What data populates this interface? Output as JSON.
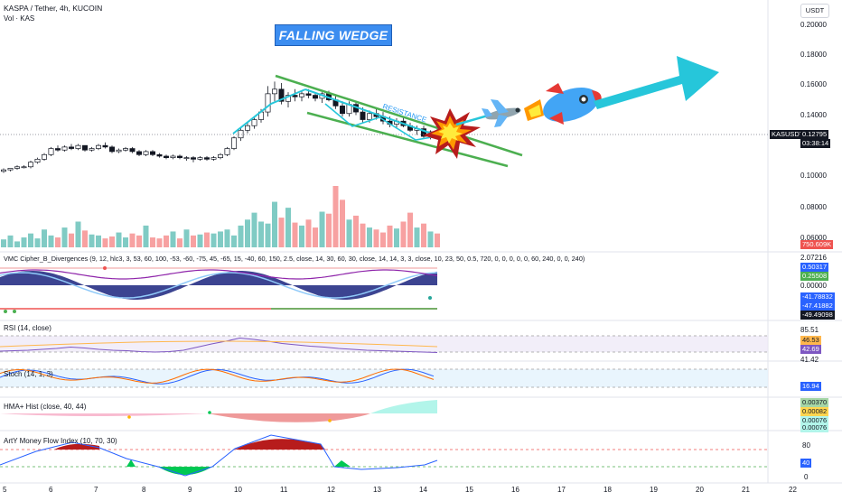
{
  "header": {
    "title": "KASPA / Tether, 4h, KUCOIN",
    "subtitle": "Vol · KAS",
    "currency_button": "USDT"
  },
  "annotations": {
    "pattern_label": "FALLING WEDGE",
    "resistance_label": "RESISTANCE"
  },
  "price_axis": {
    "ticks": [
      "0.20000",
      "0.18000",
      "0.16000",
      "0.14000",
      "0.10000",
      "0.08000",
      "0.06000"
    ],
    "symbol_tag": "KASUSDT",
    "last_price": "0.12795",
    "countdown": "03:38:14",
    "volume_tag": "750.609K"
  },
  "time_axis": {
    "ticks": [
      "5",
      "6",
      "7",
      "8",
      "9",
      "10",
      "11",
      "12",
      "13",
      "14",
      "15",
      "16",
      "17",
      "18",
      "19",
      "20",
      "21",
      "22"
    ]
  },
  "indicators": {
    "vmc": {
      "title": "VMC Cipher_B_Divergences (9, 12, hlc3, 3, 53, 60, 100, -53, -60, -75, 45, -65, 15, -40, 60, 150, 2.5, close, 14, 30, 60, 30, close, 14, 14, 3, 3, close, 10, 23, 50, 0.5, 720, 0, 0, 0, 0, 0, 60, 240, 0, 0, 240)",
      "axis": [
        "2.07216",
        "0.50317",
        "0.25508",
        "0.00000",
        "-41.78832",
        "-47.41882",
        "-49.49098"
      ]
    },
    "rsi": {
      "title": "RSI (14, close)",
      "axis": [
        "85.51",
        "46.53",
        "42.69",
        "41.42"
      ]
    },
    "stoch": {
      "title": "Stoch (14, 1, 3)",
      "axis": [
        "16.94"
      ]
    },
    "hma": {
      "title": "HMA+ Hist (close, 40, 44)",
      "axis": [
        "0.00370",
        "0.00082",
        "0.00076",
        "0.00076"
      ]
    },
    "mfi": {
      "title": "ArtY Money Flow Index (10, 70, 30)",
      "axis": [
        "80",
        "40",
        "0"
      ]
    }
  },
  "colors": {
    "up": "#26a69a",
    "down": "#ef5350",
    "wedge_lines": "#4caf50",
    "trend_cyan": "#26c6da",
    "axis_text": "#131722"
  },
  "chart_data": {
    "type": "candlestick",
    "title": "KASPA / Tether, 4h, KUCOIN",
    "x_ticks": [
      "5",
      "6",
      "7",
      "8",
      "9",
      "10",
      "11",
      "12",
      "13",
      "14",
      "15",
      "16",
      "17",
      "18",
      "19",
      "20",
      "21",
      "22"
    ],
    "y_ticks": [
      0.06,
      0.08,
      0.1,
      0.14,
      0.16,
      0.18,
      0.2
    ],
    "ylim": [
      0.056,
      0.208
    ],
    "last_price": 0.12795,
    "candles": [
      [
        0.104,
        0.106,
        0.103,
        0.105
      ],
      [
        0.105,
        0.106,
        0.104,
        0.106
      ],
      [
        0.106,
        0.108,
        0.105,
        0.107
      ],
      [
        0.107,
        0.108,
        0.106,
        0.107
      ],
      [
        0.107,
        0.111,
        0.106,
        0.11
      ],
      [
        0.11,
        0.113,
        0.109,
        0.112
      ],
      [
        0.112,
        0.116,
        0.111,
        0.115
      ],
      [
        0.115,
        0.12,
        0.114,
        0.119
      ],
      [
        0.119,
        0.121,
        0.117,
        0.118
      ],
      [
        0.118,
        0.121,
        0.117,
        0.12
      ],
      [
        0.12,
        0.122,
        0.118,
        0.119
      ],
      [
        0.119,
        0.122,
        0.118,
        0.121
      ],
      [
        0.121,
        0.121,
        0.117,
        0.118
      ],
      [
        0.118,
        0.12,
        0.117,
        0.119
      ],
      [
        0.119,
        0.122,
        0.118,
        0.121
      ],
      [
        0.121,
        0.123,
        0.119,
        0.12
      ],
      [
        0.12,
        0.121,
        0.116,
        0.117
      ],
      [
        0.117,
        0.119,
        0.116,
        0.118
      ],
      [
        0.118,
        0.12,
        0.117,
        0.119
      ],
      [
        0.119,
        0.12,
        0.116,
        0.117
      ],
      [
        0.117,
        0.118,
        0.114,
        0.115
      ],
      [
        0.115,
        0.118,
        0.114,
        0.117
      ],
      [
        0.117,
        0.118,
        0.114,
        0.115
      ],
      [
        0.115,
        0.116,
        0.113,
        0.114
      ],
      [
        0.114,
        0.115,
        0.112,
        0.113
      ],
      [
        0.113,
        0.115,
        0.112,
        0.114
      ],
      [
        0.114,
        0.115,
        0.112,
        0.113
      ],
      [
        0.113,
        0.114,
        0.111,
        0.113
      ],
      [
        0.113,
        0.114,
        0.11,
        0.112
      ],
      [
        0.112,
        0.114,
        0.111,
        0.113
      ],
      [
        0.113,
        0.114,
        0.111,
        0.112
      ],
      [
        0.112,
        0.114,
        0.111,
        0.113
      ],
      [
        0.113,
        0.116,
        0.112,
        0.115
      ],
      [
        0.115,
        0.12,
        0.114,
        0.119
      ],
      [
        0.119,
        0.127,
        0.118,
        0.126
      ],
      [
        0.126,
        0.133,
        0.124,
        0.131
      ],
      [
        0.131,
        0.136,
        0.129,
        0.134
      ],
      [
        0.134,
        0.14,
        0.132,
        0.138
      ],
      [
        0.138,
        0.145,
        0.136,
        0.143
      ],
      [
        0.143,
        0.16,
        0.14,
        0.155
      ],
      [
        0.155,
        0.163,
        0.15,
        0.158
      ],
      [
        0.158,
        0.162,
        0.148,
        0.15
      ],
      [
        0.15,
        0.156,
        0.146,
        0.154
      ],
      [
        0.154,
        0.158,
        0.15,
        0.153
      ],
      [
        0.153,
        0.157,
        0.15,
        0.155
      ],
      [
        0.155,
        0.158,
        0.152,
        0.154
      ],
      [
        0.154,
        0.156,
        0.15,
        0.152
      ],
      [
        0.152,
        0.156,
        0.149,
        0.155
      ],
      [
        0.155,
        0.157,
        0.15,
        0.151
      ],
      [
        0.151,
        0.154,
        0.145,
        0.147
      ],
      [
        0.147,
        0.15,
        0.14,
        0.142
      ],
      [
        0.142,
        0.15,
        0.14,
        0.148
      ],
      [
        0.148,
        0.15,
        0.141,
        0.143
      ],
      [
        0.143,
        0.146,
        0.136,
        0.138
      ],
      [
        0.138,
        0.144,
        0.136,
        0.142
      ],
      [
        0.142,
        0.145,
        0.138,
        0.14
      ],
      [
        0.14,
        0.143,
        0.135,
        0.137
      ],
      [
        0.137,
        0.14,
        0.133,
        0.135
      ],
      [
        0.135,
        0.139,
        0.132,
        0.137
      ],
      [
        0.137,
        0.14,
        0.133,
        0.134
      ],
      [
        0.134,
        0.136,
        0.13,
        0.131
      ],
      [
        0.131,
        0.134,
        0.128,
        0.132
      ],
      [
        0.132,
        0.134,
        0.126,
        0.127
      ],
      [
        0.127,
        0.131,
        0.125,
        0.13
      ],
      [
        0.13,
        0.132,
        0.126,
        0.128
      ]
    ],
    "volume": [
      8,
      12,
      6,
      10,
      14,
      9,
      18,
      12,
      10,
      20,
      14,
      26,
      17,
      13,
      12,
      9,
      11,
      15,
      10,
      14,
      12,
      22,
      10,
      9,
      12,
      16,
      9,
      18,
      12,
      13,
      15,
      14,
      16,
      18,
      12,
      22,
      28,
      35,
      26,
      24,
      46,
      30,
      40,
      25,
      22,
      28,
      20,
      36,
      34,
      62,
      48,
      28,
      32,
      24,
      20,
      18,
      15,
      22,
      19,
      26,
      35,
      20,
      24,
      16,
      14
    ]
  }
}
